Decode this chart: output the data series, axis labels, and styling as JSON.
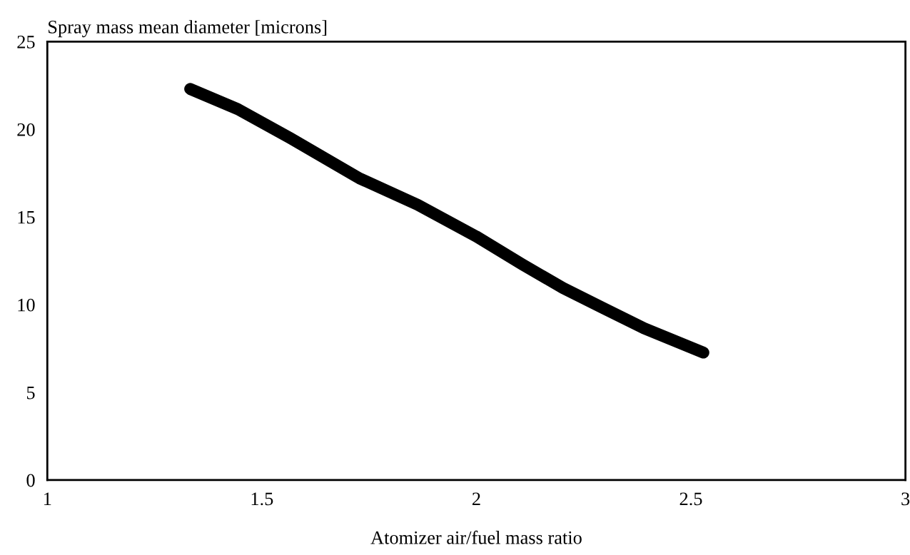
{
  "chart_data": {
    "type": "line",
    "ylabel": "Spray mass mean diameter [microns]",
    "xlabel": "Atomizer air/fuel mass ratio",
    "x": [
      1.333,
      1.444,
      1.566,
      1.728,
      1.863,
      1.999,
      2.107,
      2.202,
      2.296,
      2.391,
      2.529
    ],
    "series": [
      {
        "color": "#000000",
        "values": [
          22.3,
          21.15,
          19.5,
          17.2,
          15.7,
          13.9,
          12.3,
          10.95,
          9.8,
          8.65,
          7.27
        ]
      }
    ],
    "xlim": [
      1,
      3
    ],
    "xticks": [
      1,
      1.5,
      2,
      2.5,
      3
    ],
    "ylim": [
      0,
      25
    ],
    "yticks": [
      0,
      5,
      10,
      15,
      20,
      25
    ],
    "grid": false,
    "legend": false,
    "line_style": "solid"
  }
}
